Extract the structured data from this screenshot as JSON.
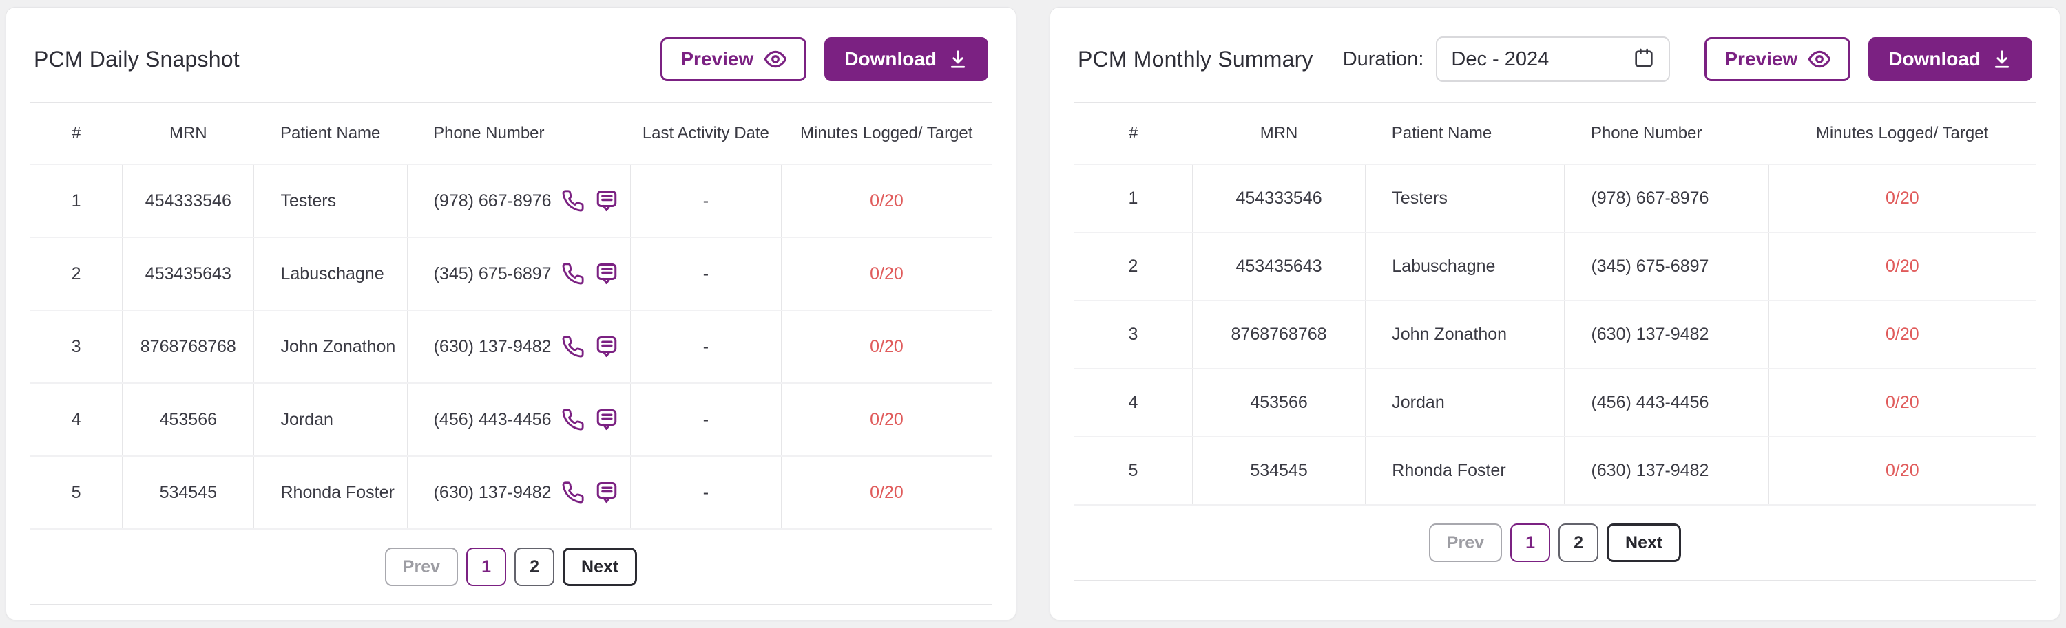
{
  "colors": {
    "accent": "#7b2182",
    "danger": "#e05b5b",
    "disabled": "#9d9da3"
  },
  "daily": {
    "title": "PCM Daily Snapshot",
    "preview_label": "Preview",
    "download_label": "Download",
    "headers": [
      "#",
      "MRN",
      "Patient Name",
      "Phone Number",
      "Last Activity Date",
      "Minutes Logged/ Target"
    ],
    "rows": [
      {
        "num": "1",
        "mrn": "454333546",
        "name": "Testers",
        "phone": "(978) 667-8976",
        "last_activity": "-",
        "minutes": "0/20"
      },
      {
        "num": "2",
        "mrn": "453435643",
        "name": "Labuschagne",
        "phone": "(345) 675-6897",
        "last_activity": "-",
        "minutes": "0/20"
      },
      {
        "num": "3",
        "mrn": "8768768768",
        "name": "John Zonathon",
        "phone": "(630) 137-9482",
        "last_activity": "-",
        "minutes": "0/20"
      },
      {
        "num": "4",
        "mrn": "453566",
        "name": "Jordan",
        "phone": "(456) 443-4456",
        "last_activity": "-",
        "minutes": "0/20"
      },
      {
        "num": "5",
        "mrn": "534545",
        "name": "Rhonda Foster",
        "phone": "(630) 137-9482",
        "last_activity": "-",
        "minutes": "0/20"
      }
    ],
    "pagination": {
      "prev": "Prev",
      "pages": [
        "1",
        "2"
      ],
      "active_page": "1",
      "next": "Next"
    }
  },
  "monthly": {
    "title": "PCM Monthly Summary",
    "duration_label": "Duration:",
    "duration_value": "Dec - 2024",
    "preview_label": "Preview",
    "download_label": "Download",
    "headers": [
      "#",
      "MRN",
      "Patient Name",
      "Phone Number",
      "Minutes Logged/ Target"
    ],
    "rows": [
      {
        "num": "1",
        "mrn": "454333546",
        "name": "Testers",
        "phone": "(978) 667-8976",
        "minutes": "0/20"
      },
      {
        "num": "2",
        "mrn": "453435643",
        "name": "Labuschagne",
        "phone": "(345) 675-6897",
        "minutes": "0/20"
      },
      {
        "num": "3",
        "mrn": "8768768768",
        "name": "John Zonathon",
        "phone": "(630) 137-9482",
        "minutes": "0/20"
      },
      {
        "num": "4",
        "mrn": "453566",
        "name": "Jordan",
        "phone": "(456) 443-4456",
        "minutes": "0/20"
      },
      {
        "num": "5",
        "mrn": "534545",
        "name": "Rhonda Foster",
        "phone": "(630) 137-9482",
        "minutes": "0/20"
      }
    ],
    "pagination": {
      "prev": "Prev",
      "pages": [
        "1",
        "2"
      ],
      "active_page": "1",
      "next": "Next"
    }
  }
}
